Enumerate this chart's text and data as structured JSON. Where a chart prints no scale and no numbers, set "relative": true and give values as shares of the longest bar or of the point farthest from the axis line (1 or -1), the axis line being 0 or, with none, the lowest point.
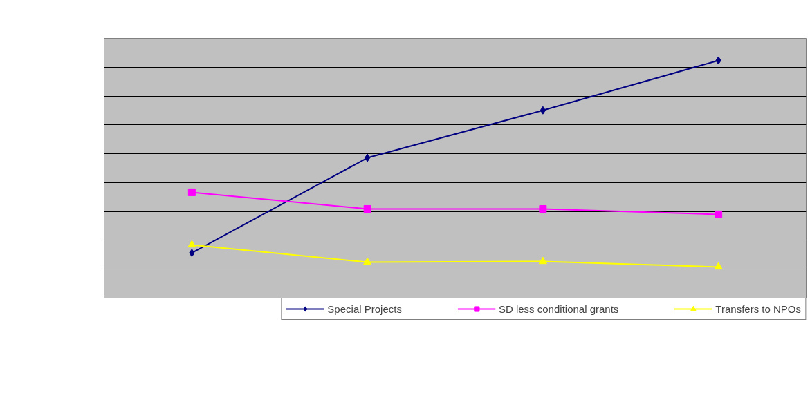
{
  "chart_data": {
    "type": "line",
    "relative": true,
    "categories": [
      null,
      null,
      null,
      null
    ],
    "series": [
      {
        "name": "Special Projects",
        "color": "#000080",
        "marker": "diamond",
        "values": [
          0.19,
          0.59,
          0.79,
          1
        ]
      },
      {
        "name": "SD less conditional grants",
        "color": "#ff00ff",
        "marker": "square",
        "values": [
          0.445,
          0.375,
          0.375,
          0.352
        ]
      },
      {
        "name": "Transfers to NPOs",
        "color": "#ffff00",
        "marker": "triangle",
        "values": [
          0.224,
          0.151,
          0.154,
          0.131
        ]
      }
    ],
    "grid": "y",
    "legend": "bottom",
    "line_style": "solid"
  }
}
